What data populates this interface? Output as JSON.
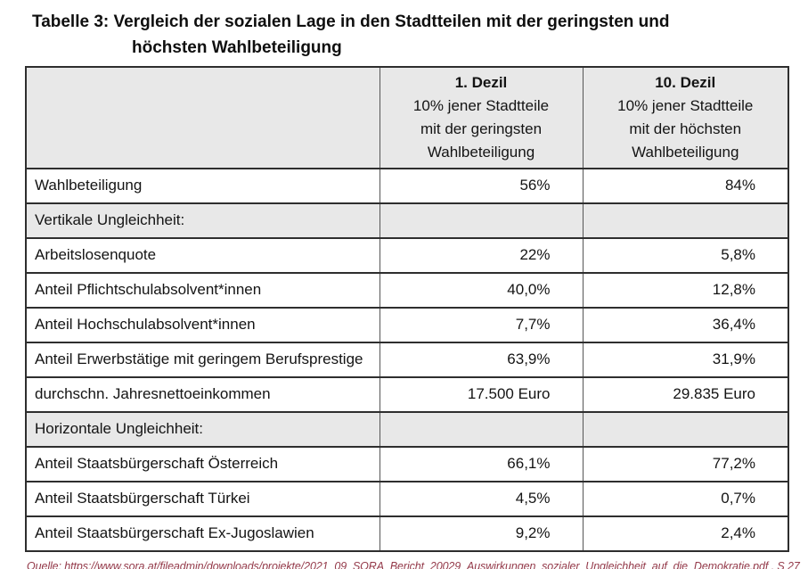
{
  "title": {
    "line1": "Tabelle 3: Vergleich der sozialen Lage in den Stadtteilen mit der geringsten und",
    "line2": "höchsten Wahlbeteiligung"
  },
  "table": {
    "columns": [
      {
        "title": "1. Dezil",
        "subtitle": "10% jener Stadtteile\nmit der geringsten\nWahlbeteiligung"
      },
      {
        "title": "10. Dezil",
        "subtitle": "10% jener Stadtteile\nmit der höchsten\nWahlbeteiligung"
      }
    ],
    "rows": [
      {
        "type": "data",
        "label": "Wahlbeteiligung",
        "dezil1": "56%",
        "dezil10": "84%"
      },
      {
        "type": "section",
        "label": "Vertikale Ungleichheit:",
        "dezil1": "",
        "dezil10": ""
      },
      {
        "type": "data",
        "label": "Arbeitslosenquote",
        "dezil1": "22%",
        "dezil10": "5,8%"
      },
      {
        "type": "data",
        "label": "Anteil Pflichtschulabsolvent*innen",
        "dezil1": "40,0%",
        "dezil10": "12,8%"
      },
      {
        "type": "data",
        "label": "Anteil Hochschulabsolvent*innen",
        "dezil1": "7,7%",
        "dezil10": "36,4%"
      },
      {
        "type": "data",
        "label": "Anteil Erwerbstätige mit geringem Berufsprestige",
        "dezil1": "63,9%",
        "dezil10": "31,9%"
      },
      {
        "type": "data",
        "label": "durchschn. Jahresnettoeinkommen",
        "dezil1": "17.500 Euro",
        "dezil10": "29.835 Euro"
      },
      {
        "type": "section",
        "label": "Horizontale Ungleichheit:",
        "dezil1": "",
        "dezil10": ""
      },
      {
        "type": "data",
        "label": "Anteil Staatsbürgerschaft Österreich",
        "dezil1": "66,1%",
        "dezil10": "77,2%"
      },
      {
        "type": "data",
        "label": "Anteil Staatsbürgerschaft Türkei",
        "dezil1": "4,5%",
        "dezil10": "0,7%"
      },
      {
        "type": "data",
        "label": "Anteil Staatsbürgerschaft Ex-Jugoslawien",
        "dezil1": "9,2%",
        "dezil10": "2,4%"
      }
    ]
  },
  "source": "Quelle: https://www.sora.at/fileadmin/downloads/projekte/2021_09_SORA_Bericht_20029_Auswirkungen_sozialer_Ungleichheit_auf_die_Demokratie.pdf , S 27",
  "colors": {
    "header_bg": "#e8e8e8",
    "section_bg": "#e8e8e8",
    "border_horizontal": "#2e2e2e",
    "border_vertical": "#565656",
    "source_text": "#943a4a"
  }
}
